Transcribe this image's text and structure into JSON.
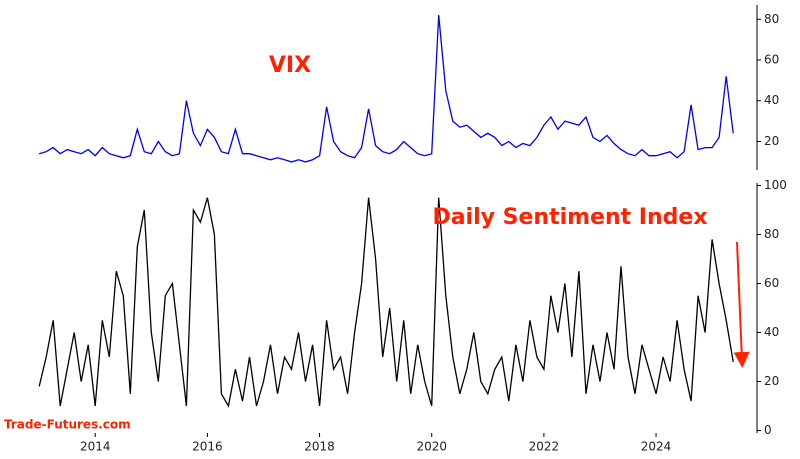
{
  "chart_data": [
    {
      "type": "line",
      "title": "VIX",
      "title_color": "#ff2200",
      "color": "#0000ee",
      "x": [
        2013,
        2013.125,
        2013.25,
        2013.375,
        2013.5,
        2013.625,
        2013.75,
        2013.875,
        2014,
        2014.125,
        2014.25,
        2014.375,
        2014.5,
        2014.625,
        2014.75,
        2014.875,
        2015,
        2015.125,
        2015.25,
        2015.375,
        2015.5,
        2015.625,
        2015.75,
        2015.875,
        2016,
        2016.125,
        2016.25,
        2016.375,
        2016.5,
        2016.625,
        2016.75,
        2016.875,
        2017,
        2017.125,
        2017.25,
        2017.375,
        2017.5,
        2017.625,
        2017.75,
        2017.875,
        2018,
        2018.125,
        2018.25,
        2018.375,
        2018.5,
        2018.625,
        2018.75,
        2018.875,
        2019,
        2019.125,
        2019.25,
        2019.375,
        2019.5,
        2019.625,
        2019.75,
        2019.875,
        2020,
        2020.125,
        2020.25,
        2020.375,
        2020.5,
        2020.625,
        2020.75,
        2020.875,
        2021,
        2021.125,
        2021.25,
        2021.375,
        2021.5,
        2021.625,
        2021.75,
        2021.875,
        2022,
        2022.125,
        2022.25,
        2022.375,
        2022.5,
        2022.625,
        2022.75,
        2022.875,
        2023,
        2023.125,
        2023.25,
        2023.375,
        2023.5,
        2023.625,
        2023.75,
        2023.875,
        2024,
        2024.125,
        2024.25,
        2024.375,
        2024.5,
        2024.625,
        2024.75,
        2024.875,
        2025,
        2025.125,
        2025.25,
        2025.375
      ],
      "values": [
        14,
        15,
        17,
        14,
        16,
        15,
        14,
        16,
        13,
        17,
        14,
        13,
        12,
        13,
        26,
        15,
        14,
        20,
        15,
        13,
        14,
        40,
        24,
        18,
        26,
        22,
        15,
        14,
        26,
        14,
        14,
        13,
        12,
        11,
        12,
        11,
        10,
        11,
        10,
        11,
        13,
        37,
        20,
        15,
        13,
        12,
        17,
        36,
        18,
        15,
        14,
        16,
        20,
        17,
        14,
        13,
        14,
        82,
        45,
        30,
        27,
        28,
        25,
        22,
        24,
        22,
        18,
        20,
        17,
        19,
        18,
        22,
        28,
        32,
        26,
        30,
        29,
        28,
        32,
        22,
        20,
        23,
        19,
        16,
        14,
        13,
        16,
        13,
        13,
        14,
        15,
        12,
        15,
        38,
        16,
        17,
        17,
        22,
        52,
        24
      ],
      "xlim": [
        2012.48,
        2025.8
      ],
      "ylim": [
        6,
        87
      ],
      "yticks": [
        20,
        40,
        60,
        80
      ]
    },
    {
      "type": "line",
      "title": "Daily Sentiment Index",
      "title_color": "#ff2200",
      "color": "#000000",
      "source": "Trade-Futures.com",
      "x": [
        2013,
        2013.125,
        2013.25,
        2013.375,
        2013.5,
        2013.625,
        2013.75,
        2013.875,
        2014,
        2014.125,
        2014.25,
        2014.375,
        2014.5,
        2014.625,
        2014.75,
        2014.875,
        2015,
        2015.125,
        2015.25,
        2015.375,
        2015.5,
        2015.625,
        2015.75,
        2015.875,
        2016,
        2016.125,
        2016.25,
        2016.375,
        2016.5,
        2016.625,
        2016.75,
        2016.875,
        2017,
        2017.125,
        2017.25,
        2017.375,
        2017.5,
        2017.625,
        2017.75,
        2017.875,
        2018,
        2018.125,
        2018.25,
        2018.375,
        2018.5,
        2018.625,
        2018.75,
        2018.875,
        2019,
        2019.125,
        2019.25,
        2019.375,
        2019.5,
        2019.625,
        2019.75,
        2019.875,
        2020,
        2020.125,
        2020.25,
        2020.375,
        2020.5,
        2020.625,
        2020.75,
        2020.875,
        2021,
        2021.125,
        2021.25,
        2021.375,
        2021.5,
        2021.625,
        2021.75,
        2021.875,
        2022,
        2022.125,
        2022.25,
        2022.375,
        2022.5,
        2022.625,
        2022.75,
        2022.875,
        2023,
        2023.125,
        2023.25,
        2023.375,
        2023.5,
        2023.625,
        2023.75,
        2023.875,
        2024,
        2024.125,
        2024.25,
        2024.375,
        2024.5,
        2024.625,
        2024.75,
        2024.875,
        2025,
        2025.125,
        2025.25,
        2025.375
      ],
      "values": [
        18,
        30,
        45,
        10,
        25,
        40,
        20,
        35,
        10,
        45,
        30,
        65,
        55,
        15,
        75,
        90,
        40,
        20,
        55,
        60,
        35,
        10,
        90,
        85,
        95,
        80,
        15,
        10,
        25,
        12,
        30,
        10,
        20,
        35,
        15,
        30,
        25,
        40,
        20,
        35,
        10,
        45,
        25,
        30,
        15,
        40,
        60,
        95,
        70,
        30,
        50,
        20,
        45,
        15,
        35,
        20,
        10,
        95,
        55,
        30,
        15,
        25,
        40,
        20,
        15,
        25,
        30,
        12,
        35,
        20,
        45,
        30,
        25,
        55,
        40,
        60,
        30,
        65,
        15,
        35,
        20,
        40,
        25,
        67,
        30,
        15,
        35,
        25,
        15,
        30,
        20,
        45,
        25,
        12,
        55,
        40,
        78,
        60,
        45,
        28
      ],
      "xlim": [
        2012.48,
        2025.8
      ],
      "ylim": [
        -1,
        101
      ],
      "yticks": [
        0,
        20,
        40,
        60,
        80,
        100
      ],
      "xticks": [
        2014,
        2016,
        2018,
        2020,
        2022,
        2024
      ]
    }
  ]
}
